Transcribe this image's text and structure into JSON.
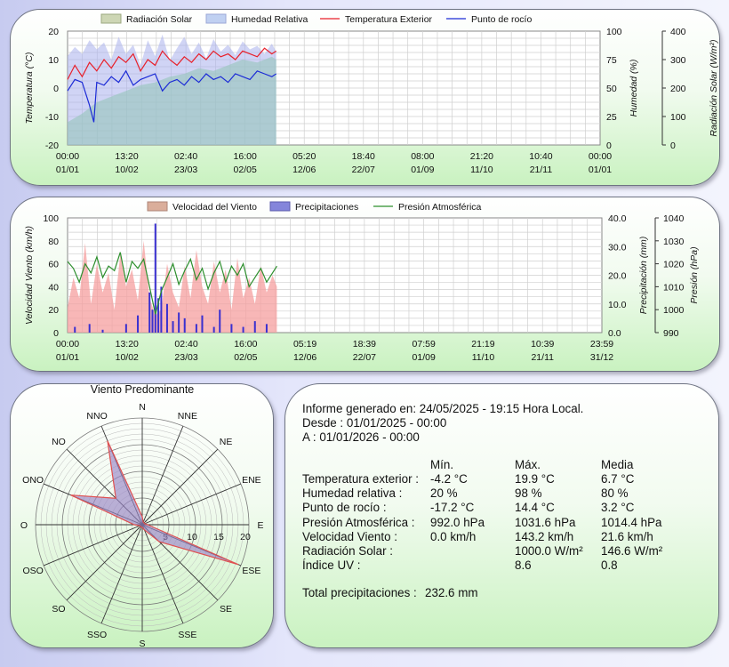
{
  "colors": {
    "radiation": "#7de07d",
    "humidity": "#aab0ec",
    "temperature": "#e8202a",
    "dewpoint": "#1c2bd6",
    "wind": "#f59f9f",
    "rain": "#3a30d0",
    "pressure": "#2d8f2d",
    "rose_fill": "#9a86c6",
    "rose_edge": "#e05050",
    "grid": "#cfcfcf"
  },
  "chart_data": [
    {
      "type": "line",
      "id": "top",
      "legend": [
        "Radiación Solar",
        "Humedad Relativa",
        "Temperatura Exterior",
        "Punto de rocío"
      ],
      "x_tick_times": [
        "00:00",
        "13:20",
        "02:40",
        "16:00",
        "05:20",
        "18:40",
        "08:00",
        "21:20",
        "10:40",
        "00:00"
      ],
      "x_tick_dates": [
        "01/01",
        "10/02",
        "23/03",
        "02/05",
        "12/06",
        "22/07",
        "01/09",
        "11/10",
        "21/11",
        "01/01"
      ],
      "x_range_days": [
        0,
        365
      ],
      "data_until_day": 143,
      "y_left": {
        "label": "Temperatura (°C)",
        "range": [
          -20,
          20
        ],
        "ticks": [
          "20",
          "10",
          "0",
          "-10",
          "-20"
        ]
      },
      "y_right1": {
        "label": "Humedad (%)",
        "range": [
          0,
          100
        ],
        "ticks": [
          "100",
          "75",
          "50",
          "25",
          "0"
        ]
      },
      "y_right2": {
        "label": "Radiación Solar (W/m²)",
        "range": [
          0,
          400
        ],
        "ticks": [
          "400",
          "300",
          "200",
          "100",
          "0"
        ]
      },
      "series": [
        {
          "name": "Temperatura Exterior",
          "axis": "left",
          "x": [
            0,
            5,
            10,
            15,
            20,
            25,
            30,
            35,
            40,
            45,
            50,
            55,
            60,
            65,
            70,
            75,
            80,
            85,
            90,
            95,
            100,
            105,
            110,
            115,
            120,
            125,
            130,
            135,
            140,
            143
          ],
          "y": [
            3,
            8,
            4,
            9,
            6,
            10,
            7,
            11,
            9,
            12,
            6,
            10,
            8,
            13,
            10,
            8,
            11,
            9,
            12,
            10,
            13,
            11,
            12,
            10,
            13,
            12,
            11,
            14,
            12,
            13
          ]
        },
        {
          "name": "Punto de rocío",
          "axis": "left",
          "x": [
            0,
            5,
            10,
            15,
            18,
            20,
            25,
            30,
            35,
            40,
            45,
            50,
            55,
            60,
            65,
            70,
            75,
            80,
            85,
            90,
            95,
            100,
            105,
            110,
            115,
            120,
            125,
            130,
            135,
            140,
            143
          ],
          "y": [
            -1,
            3,
            2,
            -6,
            -12,
            2,
            1,
            4,
            2,
            6,
            1,
            3,
            4,
            5,
            -1,
            2,
            3,
            1,
            4,
            2,
            5,
            3,
            4,
            2,
            5,
            4,
            3,
            6,
            5,
            4,
            5
          ]
        },
        {
          "name": "Humedad Relativa",
          "axis": "right1",
          "x": [
            0,
            5,
            10,
            15,
            20,
            25,
            30,
            35,
            40,
            45,
            50,
            55,
            60,
            65,
            70,
            75,
            80,
            85,
            90,
            95,
            100,
            105,
            110,
            115,
            120,
            125,
            130,
            135,
            140,
            143
          ],
          "y": [
            78,
            86,
            80,
            92,
            84,
            90,
            75,
            95,
            80,
            88,
            70,
            92,
            78,
            97,
            74,
            85,
            95,
            80,
            90,
            76,
            93,
            82,
            88,
            79,
            91,
            84,
            87,
            80,
            89,
            82
          ]
        },
        {
          "name": "Radiación Solar",
          "axis": "right2",
          "x": [
            0,
            10,
            20,
            30,
            40,
            50,
            60,
            70,
            80,
            90,
            100,
            110,
            120,
            130,
            140,
            143
          ],
          "y": [
            80,
            110,
            150,
            170,
            190,
            210,
            220,
            240,
            250,
            270,
            260,
            280,
            300,
            290,
            310,
            300
          ]
        }
      ]
    },
    {
      "type": "line",
      "id": "middle",
      "legend": [
        "Velocidad del Viento",
        "Precipitaciones",
        "Presión Atmosférica"
      ],
      "x_tick_times": [
        "00:00",
        "13:20",
        "02:40",
        "16:00",
        "05:19",
        "18:39",
        "07:59",
        "21:19",
        "10:39",
        "23:59"
      ],
      "x_tick_dates": [
        "01/01",
        "10/02",
        "23/03",
        "02/05",
        "12/06",
        "22/07",
        "01/09",
        "11/10",
        "21/11",
        "31/12"
      ],
      "x_range_days": [
        0,
        365
      ],
      "data_until_day": 143,
      "y_left": {
        "label": "Velocidad Viento (km/h)",
        "range": [
          0,
          100
        ],
        "ticks": [
          "100",
          "80",
          "60",
          "40",
          "20",
          "0"
        ]
      },
      "y_right1": {
        "label": "Precipitación (mm)",
        "range": [
          0,
          40
        ],
        "ticks": [
          "40.0",
          "30.0",
          "20.0",
          "10.0",
          "0.0"
        ]
      },
      "y_right2": {
        "label": "Presión (hPa)",
        "range": [
          990,
          1040
        ],
        "ticks": [
          "1040",
          "1030",
          "1020",
          "1010",
          "1000",
          "990"
        ]
      },
      "series": [
        {
          "name": "Velocidad del Viento",
          "axis": "left",
          "x": [
            0,
            4,
            8,
            12,
            16,
            20,
            24,
            28,
            32,
            36,
            40,
            44,
            48,
            52,
            56,
            60,
            64,
            68,
            72,
            76,
            80,
            84,
            88,
            92,
            96,
            100,
            104,
            108,
            112,
            116,
            120,
            124,
            128,
            132,
            136,
            140,
            143
          ],
          "y": [
            22,
            48,
            30,
            78,
            25,
            60,
            35,
            52,
            20,
            68,
            40,
            55,
            28,
            80,
            30,
            15,
            20,
            60,
            35,
            22,
            58,
            30,
            72,
            40,
            25,
            62,
            35,
            55,
            20,
            65,
            30,
            48,
            25,
            58,
            35,
            50,
            40
          ]
        },
        {
          "name": "Precipitaciones",
          "axis": "right1",
          "x": [
            5,
            15,
            24,
            40,
            48,
            56,
            58,
            60,
            62,
            64,
            68,
            72,
            76,
            80,
            88,
            92,
            100,
            104,
            112,
            120,
            128,
            136
          ],
          "y": [
            2,
            3,
            1,
            3,
            6,
            14,
            8,
            38,
            12,
            16,
            10,
            4,
            7,
            5,
            3,
            6,
            2,
            8,
            3,
            2,
            4,
            3
          ]
        },
        {
          "name": "Presión Atmosférica",
          "axis": "right2",
          "x": [
            0,
            4,
            8,
            12,
            16,
            20,
            24,
            28,
            32,
            36,
            40,
            44,
            48,
            52,
            56,
            60,
            64,
            68,
            72,
            76,
            80,
            84,
            88,
            92,
            96,
            100,
            104,
            108,
            112,
            116,
            120,
            124,
            128,
            132,
            136,
            140,
            143
          ],
          "y": [
            1021,
            1018,
            1012,
            1020,
            1016,
            1023,
            1014,
            1019,
            1017,
            1025,
            1012,
            1021,
            1018,
            1022,
            1010,
            998,
            1008,
            1014,
            1020,
            1011,
            1017,
            1022,
            1013,
            1018,
            1009,
            1016,
            1021,
            1012,
            1019,
            1015,
            1020,
            1010,
            1014,
            1018,
            1012,
            1016,
            1019
          ]
        }
      ]
    },
    {
      "type": "radar",
      "id": "rose",
      "title": "Viento Predominante",
      "directions": [
        "N",
        "NNE",
        "NE",
        "ENE",
        "E",
        "ESE",
        "SE",
        "SSE",
        "S",
        "SSO",
        "SO",
        "OSO",
        "O",
        "ONO",
        "NO",
        "NNO"
      ],
      "rings": [
        "5",
        "10",
        "15",
        "20"
      ],
      "r_range": [
        0,
        20
      ],
      "values": [
        1.5,
        0.5,
        0.5,
        0.5,
        1,
        19.5,
        4.5,
        1,
        0.5,
        0.5,
        0.5,
        0.5,
        1.5,
        14.5,
        7,
        17
      ]
    }
  ],
  "report": {
    "generated": "Informe generado en: 24/05/2025 - 19:15 Hora Local.",
    "from": "Desde : 01/01/2025 - 00:00",
    "to": "A : 01/01/2026 - 00:00",
    "col_min": "Mín.",
    "col_max": "Máx.",
    "col_avg": "Media",
    "rows": [
      {
        "label": "Temperatura exterior :",
        "min": "-4.2 °C",
        "max": "19.9 °C",
        "avg": "6.7 °C"
      },
      {
        "label": "Humedad relativa :",
        "min": "20 %",
        "max": "98 %",
        "avg": "80 %"
      },
      {
        "label": "Punto de rocío :",
        "min": "-17.2 °C",
        "max": "14.4 °C",
        "avg": "3.2 °C"
      },
      {
        "label": "Presión Atmosférica :",
        "min": "992.0 hPa",
        "max": "1031.6 hPa",
        "avg": "1014.4 hPa"
      },
      {
        "label": "Velocidad Viento :",
        "min": "0.0 km/h",
        "max": "143.2 km/h",
        "avg": "21.6 km/h"
      },
      {
        "label": "Radiación Solar :",
        "min": "",
        "max": "1000.0 W/m²",
        "avg": "146.6 W/m²"
      },
      {
        "label": "Índice UV :",
        "min": "",
        "max": "8.6",
        "avg": "0.8"
      }
    ],
    "total_label": "Total precipitaciones :",
    "total_value": "232.6 mm"
  }
}
